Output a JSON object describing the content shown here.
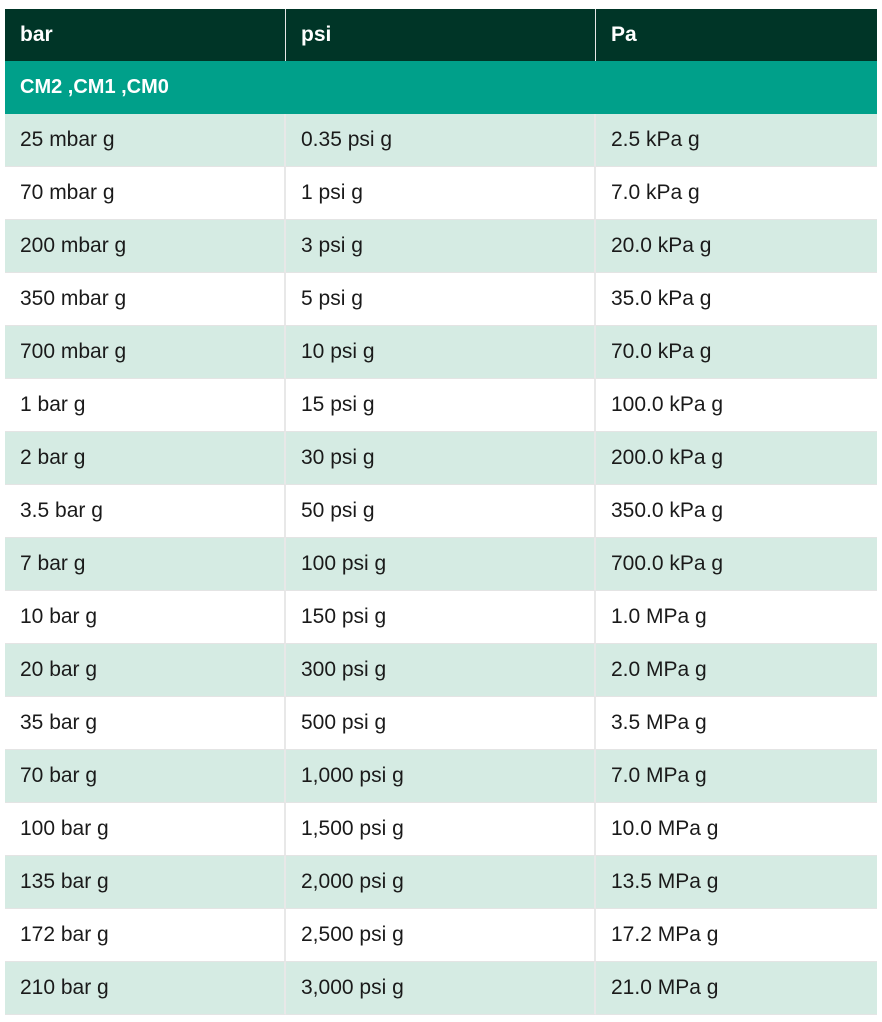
{
  "header": [
    "bar",
    "psi",
    "Pa"
  ],
  "group_label": "CM2 ,CM1 ,CM0",
  "rows": [
    [
      "25 mbar g",
      "0.35 psi g",
      "2.5 kPa g"
    ],
    [
      "70 mbar g",
      "1 psi g",
      "7.0 kPa g"
    ],
    [
      "200 mbar g",
      "3 psi g",
      "20.0 kPa g"
    ],
    [
      "350 mbar g",
      "5 psi g",
      "35.0 kPa g"
    ],
    [
      "700 mbar g",
      "10 psi g",
      "70.0 kPa g"
    ],
    [
      "1 bar g",
      "15 psi g",
      "100.0 kPa g"
    ],
    [
      "2 bar g",
      "30 psi g",
      "200.0 kPa g"
    ],
    [
      "3.5 bar g",
      "50 psi g",
      "350.0 kPa g"
    ],
    [
      "7 bar g",
      "100 psi g",
      "700.0 kPa g"
    ],
    [
      "10 bar g",
      "150 psi g",
      "1.0 MPa g"
    ],
    [
      "20 bar g",
      "300 psi g",
      "2.0 MPa g"
    ],
    [
      "35 bar g",
      "500 psi g",
      "3.5 MPa g"
    ],
    [
      "70 bar g",
      "1,000 psi g",
      "7.0 MPa g"
    ],
    [
      "100 bar g",
      "1,500 psi g",
      "10.0 MPa g"
    ],
    [
      "135 bar g",
      "2,000 psi g",
      "13.5 MPa g"
    ],
    [
      "172 bar g",
      "2,500 psi g",
      "17.2 MPa g"
    ],
    [
      "210 bar g",
      "3,000 psi g",
      "21.0 MPa g"
    ]
  ],
  "colors": {
    "header_bg": "#003527",
    "group_bg": "#00a08a",
    "shaded_row_bg": "#d5ebe3",
    "plain_row_bg": "#ffffff"
  }
}
